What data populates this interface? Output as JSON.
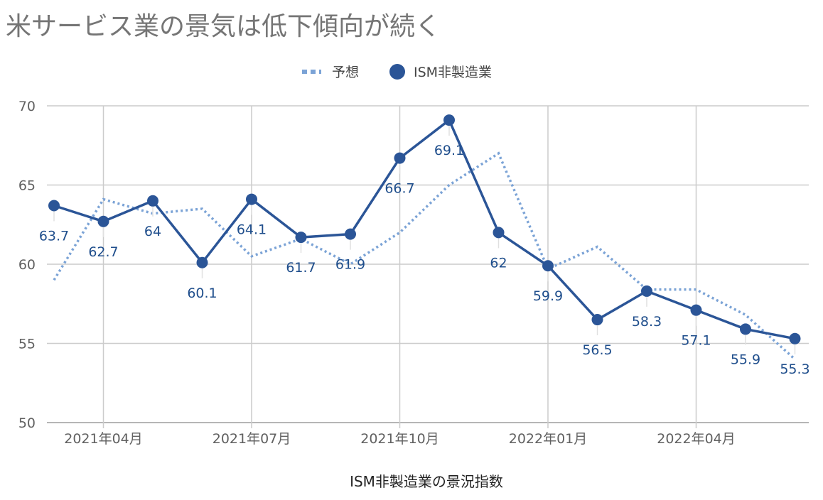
{
  "title": "米サービス業の景気は低下傾向が続く",
  "chart_data": {
    "type": "line",
    "xlabel": "ISM非製造業の景況指数",
    "ylabel": "",
    "ylim": [
      50,
      70
    ],
    "yticks": [
      50,
      55,
      60,
      65,
      70
    ],
    "x_tick_labels": [
      "2021年04月",
      "2021年07月",
      "2021年10月",
      "2022年01月",
      "2022年04月"
    ],
    "x_tick_indices": [
      1,
      4,
      7,
      10,
      13
    ],
    "legend_position": "top",
    "grid": true,
    "series": [
      {
        "name": "予想",
        "style": "dotted",
        "color": "#7ba3d6",
        "values": [
          59.0,
          64.1,
          63.2,
          63.5,
          60.5,
          61.6,
          60.0,
          62.0,
          65.0,
          67.0,
          59.7,
          61.1,
          58.4,
          58.4,
          56.8,
          54.0
        ]
      },
      {
        "name": "ISM非製造業",
        "style": "solid-markers",
        "color": "#2b5597",
        "values": [
          63.7,
          62.7,
          64,
          60.1,
          64.1,
          61.7,
          61.9,
          66.7,
          69.1,
          62,
          59.9,
          56.5,
          58.3,
          57.1,
          55.9,
          55.3
        ],
        "labels": [
          "63.7",
          "62.7",
          "64",
          "60.1",
          "64.1",
          "61.7",
          "61.9",
          "66.7",
          "69.1",
          "62",
          "59.9",
          "56.5",
          "58.3",
          "57.1",
          "55.9",
          "55.3"
        ]
      }
    ]
  }
}
